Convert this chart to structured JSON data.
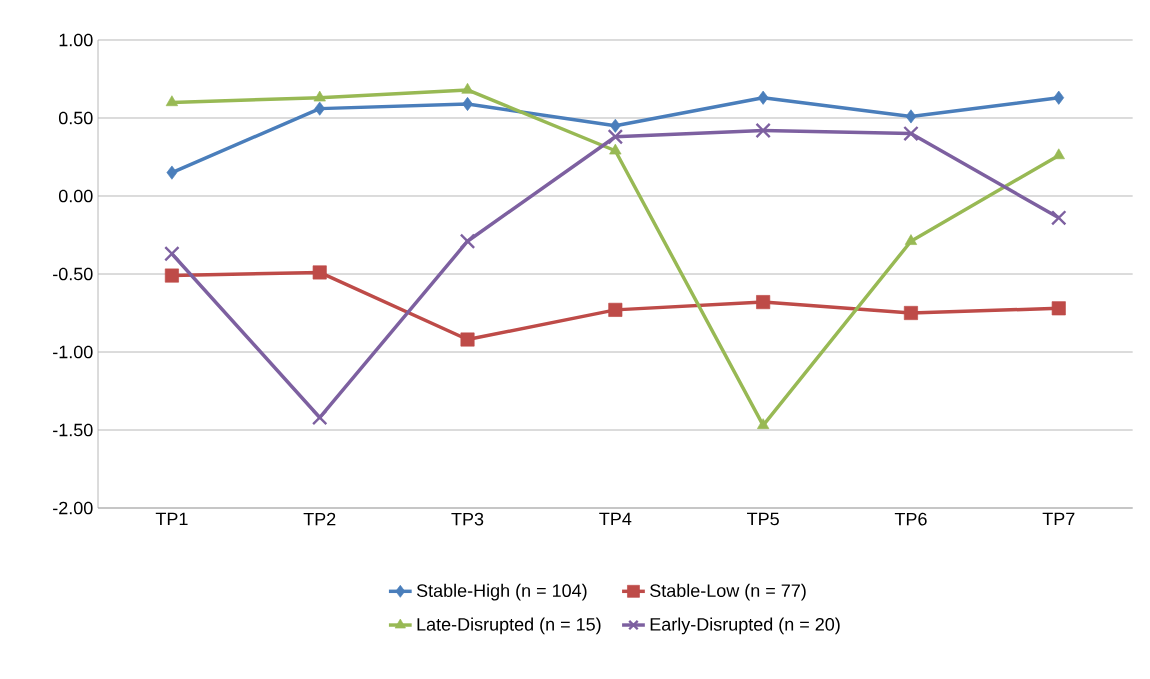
{
  "chart_data": {
    "type": "line",
    "categories": [
      "TP1",
      "TP2",
      "TP3",
      "TP4",
      "TP5",
      "TP6",
      "TP7"
    ],
    "series": [
      {
        "name": "Stable-High (n = 104)",
        "color": "#4a7ebb",
        "marker": "diamond",
        "values": [
          0.15,
          0.56,
          0.59,
          0.45,
          0.63,
          0.51,
          0.63
        ]
      },
      {
        "name": "Stable-Low (n = 77)",
        "color": "#be4b48",
        "marker": "square",
        "values": [
          -0.51,
          -0.49,
          -0.92,
          -0.73,
          -0.68,
          -0.75,
          -0.72
        ]
      },
      {
        "name": "Late-Disrupted (n = 15)",
        "color": "#98b954",
        "marker": "triangle",
        "values": [
          0.6,
          0.63,
          0.68,
          0.29,
          -1.47,
          -0.29,
          0.26
        ]
      },
      {
        "name": "Early-Disrupted (n = 20)",
        "color": "#7d60a0",
        "marker": "cross",
        "values": [
          -0.37,
          -1.42,
          -0.29,
          0.38,
          0.42,
          0.4,
          -0.14
        ]
      }
    ],
    "ylim": [
      -2,
      1
    ],
    "yticks": [
      {
        "value": -2,
        "label": "-2.00"
      },
      {
        "value": -1.5,
        "label": "-1.50"
      },
      {
        "value": -1,
        "label": "-1.00"
      },
      {
        "value": -0.5,
        "label": "-0.50"
      },
      {
        "value": 0,
        "label": "0.00"
      },
      {
        "value": 0.5,
        "label": "0.50"
      },
      {
        "value": 1,
        "label": "1.00"
      }
    ],
    "grid": "y",
    "legend": "bottom"
  }
}
